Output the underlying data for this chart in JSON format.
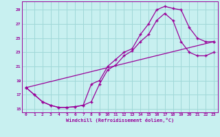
{
  "xlabel": "Windchill (Refroidissement éolien,°C)",
  "bg_color": "#c8f0f0",
  "grid_color": "#a0d8d8",
  "line_color": "#990099",
  "xlim": [
    -0.5,
    23.5
  ],
  "ylim": [
    14.5,
    30.2
  ],
  "xticks": [
    0,
    1,
    2,
    3,
    4,
    5,
    6,
    7,
    8,
    9,
    10,
    11,
    12,
    13,
    14,
    15,
    16,
    17,
    18,
    19,
    20,
    21,
    22,
    23
  ],
  "yticks": [
    15,
    17,
    19,
    21,
    23,
    25,
    27,
    29
  ],
  "line1_x": [
    0,
    1,
    2,
    3,
    4,
    5,
    6,
    7,
    8,
    9,
    10,
    11,
    12,
    13,
    14,
    15,
    16,
    17,
    18,
    19,
    20,
    21,
    22,
    23
  ],
  "line1_y": [
    18.0,
    17.0,
    16.0,
    15.5,
    15.2,
    15.2,
    15.3,
    15.5,
    16.0,
    18.5,
    20.5,
    21.2,
    22.5,
    23.2,
    24.5,
    25.5,
    27.5,
    28.5,
    27.5,
    24.5,
    23.0,
    22.5,
    22.5,
    23.0
  ],
  "line2_x": [
    0,
    1,
    2,
    3,
    4,
    5,
    6,
    7,
    8,
    9,
    10,
    11,
    12,
    13,
    14,
    15,
    16,
    17,
    18,
    19,
    20,
    21,
    22,
    23
  ],
  "line2_y": [
    18.0,
    17.0,
    16.0,
    15.5,
    15.2,
    15.2,
    15.3,
    15.5,
    18.5,
    19.0,
    21.0,
    22.0,
    23.0,
    23.5,
    25.5,
    27.0,
    29.0,
    29.5,
    29.2,
    29.0,
    26.5,
    25.0,
    24.5,
    24.5
  ],
  "line3_x": [
    0,
    23
  ],
  "line3_y": [
    18.0,
    24.5
  ]
}
